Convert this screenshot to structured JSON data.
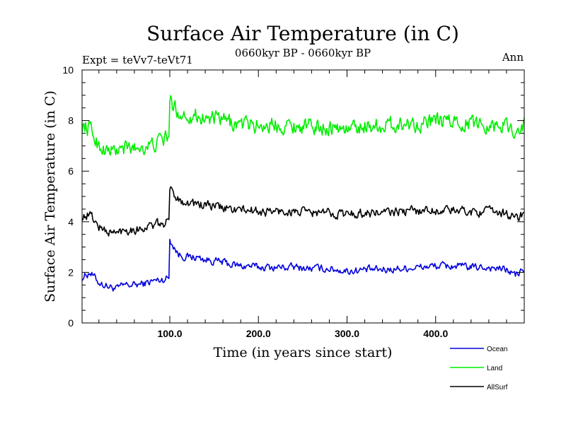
{
  "chart_data": {
    "type": "line",
    "title": "Surface Air Temperature (in C)",
    "subtitle": "0660kyr BP - 0660kyr BP",
    "left_label": "Expt = teVv7-teVt71",
    "right_label": "Ann",
    "xlabel": "Time (in years since start)",
    "ylabel": "Surface Air Temperature (in C)",
    "xlim": [
      1,
      500
    ],
    "ylim": [
      0,
      10
    ],
    "x_ticks": [
      100,
      200,
      300,
      400
    ],
    "x_tick_labels": [
      "100.0",
      "200.0",
      "300.0",
      "400.0"
    ],
    "y_ticks": [
      0,
      2,
      4,
      6,
      8,
      10
    ],
    "y_tick_labels": [
      "0",
      "2",
      "4",
      "6",
      "8",
      "10"
    ],
    "legend_position": "bottom-right",
    "x": [
      1,
      10,
      20,
      30,
      40,
      50,
      60,
      70,
      80,
      90,
      99,
      100,
      110,
      120,
      130,
      140,
      150,
      160,
      170,
      180,
      190,
      200,
      220,
      240,
      260,
      280,
      300,
      320,
      340,
      360,
      380,
      400,
      420,
      440,
      460,
      480,
      490,
      500
    ],
    "series": [
      {
        "name": "Ocean",
        "color": "#0000dd",
        "values": [
          1.8,
          2.0,
          1.6,
          1.45,
          1.35,
          1.5,
          1.5,
          1.55,
          1.65,
          1.7,
          1.8,
          3.3,
          2.7,
          2.6,
          2.6,
          2.5,
          2.45,
          2.4,
          2.3,
          2.25,
          2.25,
          2.2,
          2.2,
          2.2,
          2.15,
          2.15,
          2.05,
          2.1,
          2.1,
          2.15,
          2.2,
          2.25,
          2.25,
          2.2,
          2.2,
          2.1,
          1.9,
          2.1
        ]
      },
      {
        "name": "Land",
        "color": "#00ee00",
        "values": [
          7.8,
          7.7,
          7.0,
          6.8,
          6.8,
          6.9,
          6.9,
          7.0,
          7.0,
          7.2,
          7.4,
          8.8,
          8.3,
          8.2,
          8.2,
          8.1,
          8.05,
          8.0,
          7.9,
          7.85,
          7.85,
          7.8,
          7.85,
          7.8,
          7.75,
          7.75,
          7.65,
          7.8,
          7.8,
          7.85,
          7.9,
          7.95,
          7.95,
          7.9,
          7.85,
          7.8,
          7.6,
          7.8
        ]
      },
      {
        "name": "AllSurf",
        "color": "#000000",
        "values": [
          4.2,
          4.3,
          3.8,
          3.6,
          3.55,
          3.7,
          3.7,
          3.75,
          3.85,
          3.9,
          4.0,
          5.3,
          4.9,
          4.75,
          4.7,
          4.65,
          4.6,
          4.55,
          4.5,
          4.45,
          4.45,
          4.4,
          4.4,
          4.4,
          4.35,
          4.35,
          4.3,
          4.35,
          4.35,
          4.4,
          4.45,
          4.45,
          4.45,
          4.4,
          4.4,
          4.35,
          4.1,
          4.35
        ]
      }
    ]
  }
}
